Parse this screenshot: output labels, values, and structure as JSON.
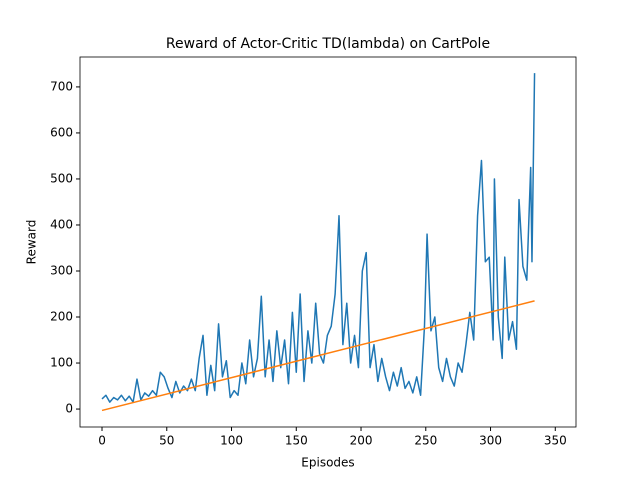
{
  "chart_data": {
    "type": "line",
    "title": "Reward of Actor-Critic TD(lambda) on CartPole",
    "xlabel": "Episodes",
    "ylabel": "Reward",
    "xlim": [
      -17,
      366
    ],
    "ylim": [
      -39,
      765
    ],
    "xticks": [
      0,
      50,
      100,
      150,
      200,
      250,
      300,
      350
    ],
    "yticks": [
      0,
      100,
      200,
      300,
      400,
      500,
      600,
      700
    ],
    "series": [
      {
        "color": "#1f77b4",
        "x": [
          0,
          3,
          6,
          9,
          12,
          15,
          18,
          21,
          24,
          27,
          30,
          33,
          36,
          39,
          42,
          45,
          48,
          51,
          54,
          57,
          60,
          63,
          66,
          69,
          72,
          75,
          78,
          81,
          84,
          87,
          90,
          93,
          96,
          99,
          102,
          105,
          108,
          111,
          114,
          117,
          120,
          123,
          126,
          129,
          132,
          135,
          138,
          141,
          144,
          147,
          150,
          153,
          156,
          159,
          162,
          165,
          168,
          171,
          174,
          177,
          180,
          183,
          186,
          189,
          192,
          195,
          198,
          201,
          204,
          207,
          210,
          213,
          216,
          219,
          222,
          225,
          228,
          231,
          234,
          237,
          240,
          243,
          246,
          249,
          251,
          254,
          257,
          260,
          263,
          266,
          269,
          272,
          275,
          278,
          281,
          284,
          287,
          290,
          293,
          296,
          299,
          302,
          303,
          306,
          309,
          311,
          314,
          317,
          320,
          322,
          325,
          328,
          331,
          332,
          334
        ],
        "values": [
          22,
          30,
          15,
          25,
          20,
          30,
          18,
          28,
          15,
          65,
          20,
          35,
          28,
          40,
          30,
          80,
          70,
          45,
          25,
          60,
          35,
          50,
          40,
          65,
          40,
          110,
          160,
          30,
          95,
          40,
          185,
          70,
          105,
          25,
          40,
          30,
          100,
          55,
          150,
          70,
          110,
          245,
          70,
          150,
          60,
          170,
          90,
          150,
          55,
          210,
          80,
          250,
          60,
          170,
          100,
          230,
          120,
          100,
          160,
          180,
          250,
          420,
          140,
          230,
          100,
          160,
          90,
          300,
          340,
          90,
          140,
          60,
          110,
          70,
          40,
          80,
          50,
          90,
          45,
          60,
          35,
          70,
          30,
          180,
          380,
          170,
          200,
          90,
          60,
          110,
          70,
          50,
          100,
          80,
          140,
          210,
          150,
          420,
          540,
          320,
          330,
          150,
          500,
          200,
          110,
          330,
          150,
          190,
          130,
          455,
          310,
          280,
          525,
          320,
          730
        ]
      },
      {
        "color": "#ff7f0e",
        "x": [
          0,
          334
        ],
        "values": [
          -3,
          235
        ]
      }
    ]
  }
}
